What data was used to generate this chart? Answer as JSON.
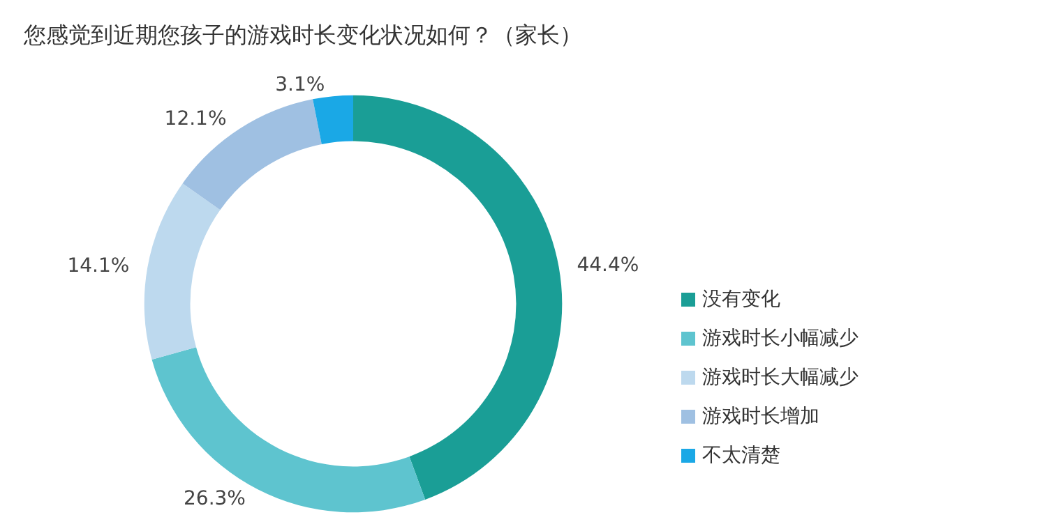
{
  "chart_data": {
    "type": "donut",
    "title": "您感觉到近期您孩子的游戏时长变化状况如何？（家长）",
    "categories": [
      "没有变化",
      "游戏时长小幅减少",
      "游戏时长大幅减少",
      "游戏时长增加",
      "不太清楚"
    ],
    "values": [
      44.4,
      26.3,
      14.1,
      12.1,
      3.1
    ],
    "value_labels": [
      "44.4%",
      "26.3%",
      "14.1%",
      "12.1%",
      "3.1%"
    ],
    "colors": [
      "#1a9e96",
      "#5ec4cf",
      "#bdd9ee",
      "#9fc0e2",
      "#1aa8e6"
    ],
    "legend": "right"
  }
}
